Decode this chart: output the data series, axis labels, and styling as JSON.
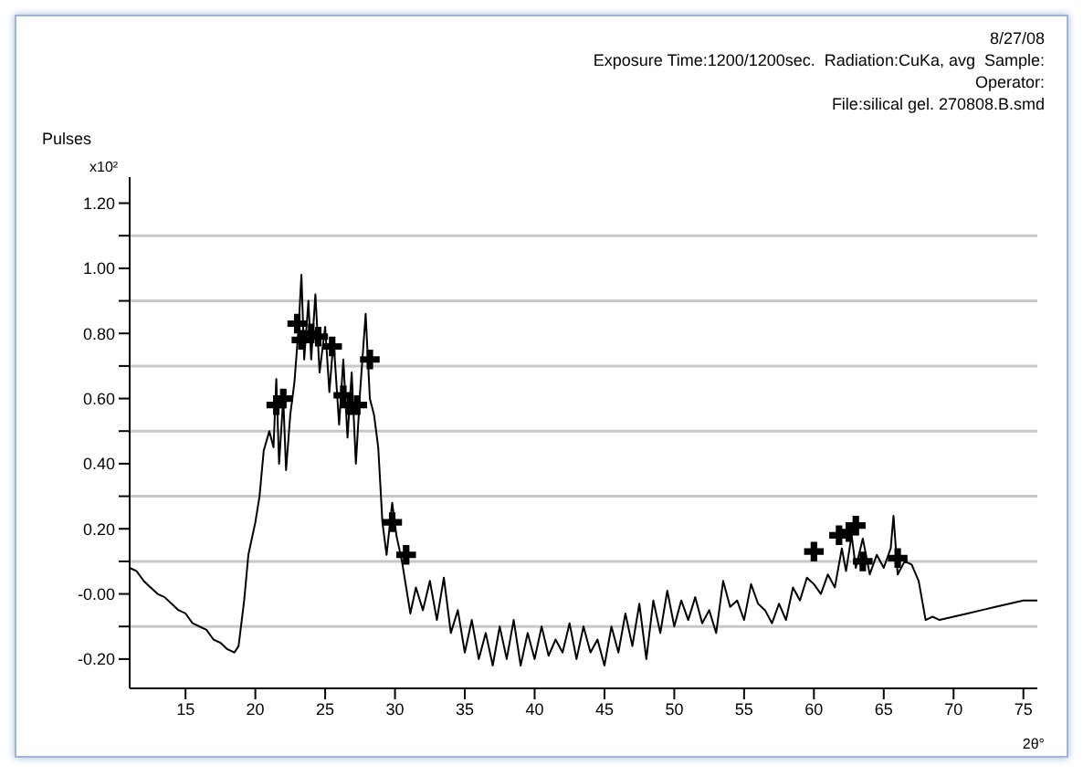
{
  "chart_data": {
    "type": "line",
    "ylabel": "Pulses",
    "xlabel": "2θ°",
    "annotations": [
      "8/27/08",
      "Exposure Time:1200/1200sec.  Radiation:CuKa, avg  Sample:",
      "Operator:",
      "File:silical gel. 270808.B.smd",
      "x10²"
    ],
    "xlim": [
      11,
      76
    ],
    "xticks": [
      15,
      20,
      25,
      30,
      35,
      40,
      45,
      50,
      55,
      60,
      65,
      70,
      75
    ],
    "ylim": [
      -0.29,
      1.28
    ],
    "yticks": [
      {
        "value": -0.2,
        "label": "-0.20"
      },
      {
        "value": -0.1,
        "label": null
      },
      {
        "value": 0,
        "label": "-0.00"
      },
      {
        "value": 0.1,
        "label": null
      },
      {
        "value": 0.2,
        "label": "0.20"
      },
      {
        "value": 0.3,
        "label": null
      },
      {
        "value": 0.4,
        "label": "0.40"
      },
      {
        "value": 0.5,
        "label": null
      },
      {
        "value": 0.6,
        "label": "0.60"
      },
      {
        "value": 0.7,
        "label": null
      },
      {
        "value": 0.8,
        "label": "0.80"
      },
      {
        "value": 0.9,
        "label": null
      },
      {
        "value": 1.0,
        "label": "1.00"
      },
      {
        "value": 1.1,
        "label": null
      },
      {
        "value": 1.2,
        "label": "1.20"
      }
    ],
    "grid": "y",
    "series": [
      {
        "color": "#000000",
        "marker": "none",
        "x": [
          11,
          11.5,
          12,
          12.5,
          13,
          13.5,
          14,
          14.5,
          15,
          15.5,
          16,
          16.5,
          17,
          17.5,
          18,
          18.5,
          18.8,
          19.2,
          19.5,
          20,
          20.3,
          20.6,
          21,
          21.3,
          21.5,
          21.7,
          22,
          22.2,
          22.5,
          22.8,
          23.1,
          23.3,
          23.5,
          23.8,
          24,
          24.3,
          24.6,
          25,
          25.3,
          25.6,
          26,
          26.3,
          26.6,
          26.9,
          27.2,
          27.5,
          27.9,
          28.2,
          28.5,
          28.8,
          29.1,
          29.4,
          29.8,
          30.1,
          30.5,
          30.8,
          31.1,
          31.5,
          32,
          32.5,
          33,
          33.5,
          34,
          34.5,
          35,
          35.5,
          36,
          36.5,
          37,
          37.5,
          38,
          38.5,
          39,
          39.5,
          40,
          40.5,
          41,
          41.5,
          42,
          42.5,
          43,
          43.5,
          44,
          44.5,
          45,
          45.5,
          46,
          46.5,
          47,
          47.5,
          48,
          48.5,
          49,
          49.5,
          50,
          50.5,
          51,
          51.5,
          52,
          52.5,
          53,
          53.5,
          54,
          54.5,
          55,
          55.5,
          56,
          56.5,
          57,
          57.5,
          58,
          58.5,
          59,
          59.5,
          60,
          60.5,
          61,
          61.5,
          62,
          62.3,
          62.7,
          63,
          63.5,
          64,
          64.5,
          65,
          65.5,
          65.7,
          66,
          66.5,
          67,
          67.5,
          68,
          68.5,
          69,
          70,
          71,
          72,
          73,
          74,
          75,
          76
        ],
        "values": [
          0.08,
          0.07,
          0.04,
          0.02,
          0.0,
          -0.01,
          -0.03,
          -0.05,
          -0.06,
          -0.09,
          -0.1,
          -0.11,
          -0.14,
          -0.15,
          -0.17,
          -0.18,
          -0.16,
          -0.02,
          0.12,
          0.22,
          0.3,
          0.44,
          0.5,
          0.45,
          0.66,
          0.4,
          0.6,
          0.38,
          0.55,
          0.65,
          0.82,
          0.98,
          0.72,
          0.9,
          0.72,
          0.92,
          0.68,
          0.82,
          0.62,
          0.78,
          0.52,
          0.72,
          0.48,
          0.68,
          0.4,
          0.62,
          0.86,
          0.6,
          0.55,
          0.45,
          0.22,
          0.12,
          0.28,
          0.18,
          0.1,
          0.02,
          -0.06,
          0.02,
          -0.05,
          0.04,
          -0.08,
          0.05,
          -0.12,
          -0.05,
          -0.18,
          -0.08,
          -0.2,
          -0.12,
          -0.22,
          -0.1,
          -0.2,
          -0.08,
          -0.22,
          -0.12,
          -0.2,
          -0.1,
          -0.19,
          -0.14,
          -0.18,
          -0.09,
          -0.2,
          -0.1,
          -0.18,
          -0.14,
          -0.22,
          -0.1,
          -0.18,
          -0.06,
          -0.16,
          -0.03,
          -0.2,
          -0.02,
          -0.12,
          0.01,
          -0.1,
          -0.02,
          -0.08,
          -0.01,
          -0.09,
          -0.05,
          -0.12,
          0.04,
          -0.04,
          -0.02,
          -0.08,
          0.03,
          -0.03,
          -0.05,
          -0.09,
          -0.03,
          -0.08,
          0.02,
          -0.02,
          0.05,
          0.03,
          0.0,
          0.06,
          0.02,
          0.14,
          0.07,
          0.18,
          0.08,
          0.17,
          0.06,
          0.12,
          0.08,
          0.14,
          0.24,
          0.06,
          0.1,
          0.09,
          0.04,
          -0.08,
          -0.07,
          -0.08,
          -0.07,
          -0.06,
          -0.05,
          -0.04,
          -0.03,
          -0.02,
          -0.02
        ]
      },
      {
        "type": "scatter",
        "color": "#000000",
        "marker": "cross",
        "x": [
          21.5,
          22,
          23,
          23.3,
          24,
          24.5,
          25.5,
          26.3,
          26.8,
          27.3,
          28.2,
          29.8,
          30.8,
          60,
          61.8,
          62.5,
          63,
          63.5,
          66
        ],
        "values": [
          0.58,
          0.6,
          0.83,
          0.78,
          0.8,
          0.79,
          0.76,
          0.61,
          0.58,
          0.58,
          0.72,
          0.22,
          0.12,
          0.13,
          0.18,
          0.19,
          0.21,
          0.1,
          0.11
        ]
      }
    ]
  }
}
